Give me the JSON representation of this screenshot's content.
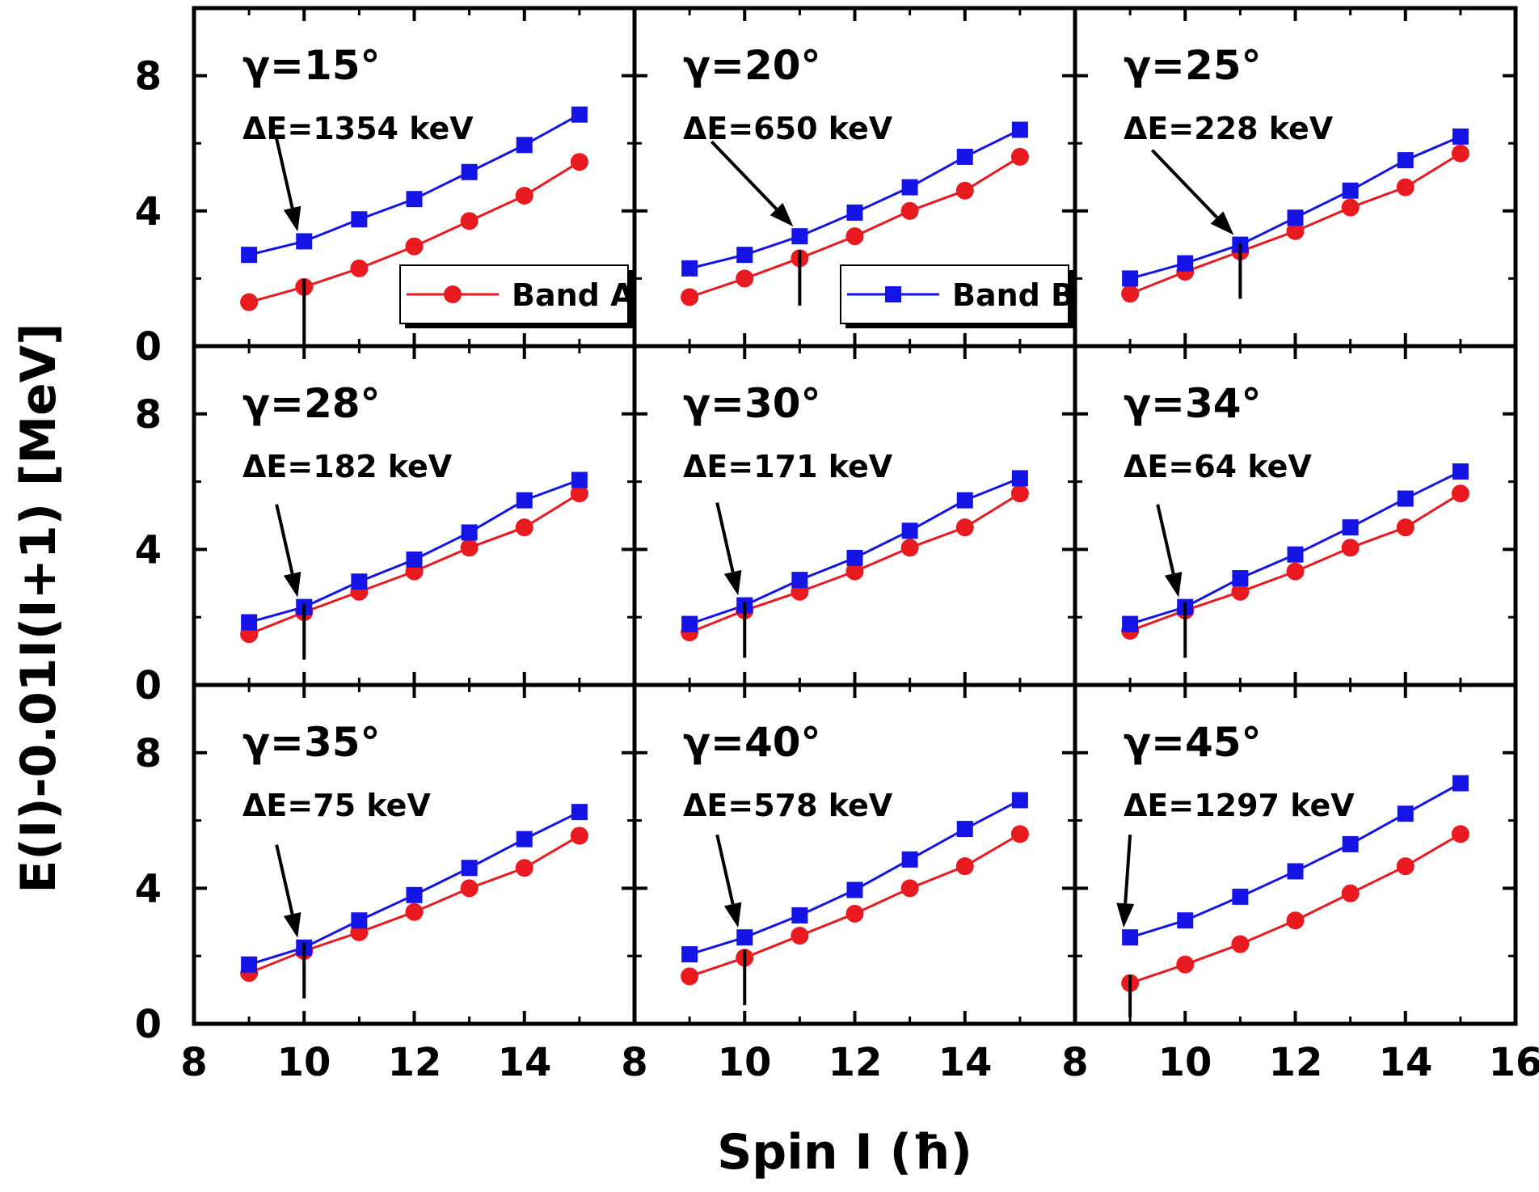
{
  "chart_data": {
    "type": "line",
    "title": "",
    "xlabel": "Spin I (ħ)",
    "ylabel": "E(I)-0.01I(I+1) [MeV]",
    "xlim": [
      8,
      16
    ],
    "ylim": [
      0,
      10
    ],
    "x_ticks": [
      8,
      10,
      12,
      14,
      16
    ],
    "y_ticks": [
      0,
      4,
      8
    ],
    "grid": false,
    "x": [
      9,
      10,
      11,
      12,
      13,
      14,
      15
    ],
    "legend": [
      {
        "name": "Band A",
        "color": "#e8191f",
        "marker": "circle",
        "placement": "bottom-right of first panel"
      },
      {
        "name": "Band B",
        "color": "#1414e6",
        "marker": "square",
        "placement": "bottom-right of second panel"
      }
    ],
    "panels": [
      {
        "gamma": "γ=15°",
        "delta_e": "ΔE=1354 keV",
        "mark_spin": 10,
        "band_a": [
          1.3,
          1.75,
          2.3,
          2.95,
          3.7,
          4.45,
          5.45
        ],
        "band_b": [
          2.7,
          3.1,
          3.75,
          4.35,
          5.15,
          5.95,
          6.85
        ]
      },
      {
        "gamma": "γ=20°",
        "delta_e": "ΔE=650 keV",
        "mark_spin": 11,
        "band_a": [
          1.45,
          2.0,
          2.6,
          3.25,
          4.0,
          4.6,
          5.6
        ],
        "band_b": [
          2.3,
          2.7,
          3.25,
          3.95,
          4.7,
          5.6,
          6.4
        ]
      },
      {
        "gamma": "γ=25°",
        "delta_e": "ΔE=228 keV",
        "mark_spin": 11,
        "band_a": [
          1.55,
          2.2,
          2.8,
          3.4,
          4.1,
          4.7,
          5.7
        ],
        "band_b": [
          2.0,
          2.45,
          3.0,
          3.8,
          4.6,
          5.5,
          6.2
        ]
      },
      {
        "gamma": "γ=28°",
        "delta_e": "ΔE=182 keV",
        "mark_spin": 10,
        "band_a": [
          1.5,
          2.15,
          2.75,
          3.35,
          4.05,
          4.65,
          5.65
        ],
        "band_b": [
          1.85,
          2.3,
          3.05,
          3.7,
          4.5,
          5.45,
          6.05
        ]
      },
      {
        "gamma": "γ=30°",
        "delta_e": "ΔE=171 keV",
        "mark_spin": 10,
        "band_a": [
          1.55,
          2.2,
          2.75,
          3.35,
          4.05,
          4.65,
          5.65
        ],
        "band_b": [
          1.8,
          2.35,
          3.1,
          3.75,
          4.55,
          5.45,
          6.1
        ]
      },
      {
        "gamma": "γ=34°",
        "delta_e": "ΔE=64 keV",
        "mark_spin": 10,
        "band_a": [
          1.6,
          2.2,
          2.75,
          3.35,
          4.05,
          4.65,
          5.65
        ],
        "band_b": [
          1.8,
          2.3,
          3.15,
          3.85,
          4.65,
          5.5,
          6.3
        ]
      },
      {
        "gamma": "γ=35°",
        "delta_e": "ΔE=75 keV",
        "mark_spin": 10,
        "band_a": [
          1.5,
          2.15,
          2.7,
          3.3,
          4.0,
          4.6,
          5.55
        ],
        "band_b": [
          1.75,
          2.25,
          3.05,
          3.8,
          4.6,
          5.45,
          6.25
        ]
      },
      {
        "gamma": "γ=40°",
        "delta_e": "ΔE=578 keV",
        "mark_spin": 10,
        "band_a": [
          1.4,
          1.95,
          2.6,
          3.25,
          4.0,
          4.65,
          5.6
        ],
        "band_b": [
          2.05,
          2.55,
          3.2,
          3.95,
          4.85,
          5.75,
          6.6
        ]
      },
      {
        "gamma": "γ=45°",
        "delta_e": "ΔE=1297 keV",
        "mark_spin": 9,
        "band_a": [
          1.2,
          1.75,
          2.35,
          3.05,
          3.85,
          4.65,
          5.6
        ],
        "band_b": [
          2.55,
          3.05,
          3.75,
          4.5,
          5.3,
          6.2,
          7.1
        ]
      }
    ]
  }
}
